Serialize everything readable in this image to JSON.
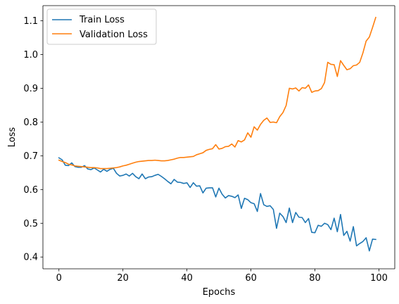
{
  "chart_data": {
    "type": "line",
    "title": "",
    "xlabel": "Epochs",
    "ylabel": "Loss",
    "xlim": [
      -5,
      104.95
    ],
    "ylim": [
      0.365,
      1.145
    ],
    "xticks": [
      0,
      20,
      40,
      60,
      80,
      100
    ],
    "yticks": [
      0.4,
      0.5,
      0.6,
      0.7,
      0.8,
      0.9,
      1.0,
      1.1
    ],
    "grid": false,
    "legend_position": "top-left",
    "x": [
      0,
      1,
      2,
      3,
      4,
      5,
      6,
      7,
      8,
      9,
      10,
      11,
      12,
      13,
      14,
      15,
      16,
      17,
      18,
      19,
      20,
      21,
      22,
      23,
      24,
      25,
      26,
      27,
      28,
      29,
      30,
      31,
      32,
      33,
      34,
      35,
      36,
      37,
      38,
      39,
      40,
      41,
      42,
      43,
      44,
      45,
      46,
      47,
      48,
      49,
      50,
      51,
      52,
      53,
      54,
      55,
      56,
      57,
      58,
      59,
      60,
      61,
      62,
      63,
      64,
      65,
      66,
      67,
      68,
      69,
      70,
      71,
      72,
      73,
      74,
      75,
      76,
      77,
      78,
      79,
      80,
      81,
      82,
      83,
      84,
      85,
      86,
      87,
      88,
      89,
      90,
      91,
      92,
      93,
      94,
      95,
      96,
      97,
      98,
      99
    ],
    "series": [
      {
        "name": "Train Loss",
        "color": "#1f77b4",
        "values": [
          0.694,
          0.688,
          0.672,
          0.671,
          0.679,
          0.668,
          0.666,
          0.666,
          0.671,
          0.661,
          0.659,
          0.664,
          0.658,
          0.652,
          0.66,
          0.654,
          0.66,
          0.663,
          0.648,
          0.64,
          0.642,
          0.646,
          0.64,
          0.648,
          0.638,
          0.632,
          0.646,
          0.632,
          0.637,
          0.638,
          0.642,
          0.645,
          0.639,
          0.632,
          0.624,
          0.617,
          0.63,
          0.622,
          0.621,
          0.618,
          0.62,
          0.606,
          0.62,
          0.61,
          0.611,
          0.59,
          0.604,
          0.605,
          0.605,
          0.578,
          0.604,
          0.586,
          0.575,
          0.582,
          0.58,
          0.576,
          0.584,
          0.544,
          0.574,
          0.57,
          0.561,
          0.558,
          0.535,
          0.588,
          0.555,
          0.55,
          0.552,
          0.541,
          0.485,
          0.53,
          0.52,
          0.502,
          0.545,
          0.502,
          0.532,
          0.518,
          0.517,
          0.502,
          0.514,
          0.473,
          0.472,
          0.494,
          0.491,
          0.5,
          0.496,
          0.481,
          0.515,
          0.475,
          0.526,
          0.464,
          0.476,
          0.447,
          0.49,
          0.433,
          0.44,
          0.446,
          0.457,
          0.418,
          0.453,
          0.452
        ]
      },
      {
        "name": "Validation Loss",
        "color": "#ff7f0e",
        "values": [
          0.687,
          0.683,
          0.68,
          0.675,
          0.673,
          0.67,
          0.669,
          0.668,
          0.667,
          0.666,
          0.665,
          0.665,
          0.664,
          0.662,
          0.662,
          0.662,
          0.663,
          0.664,
          0.665,
          0.667,
          0.67,
          0.672,
          0.675,
          0.678,
          0.681,
          0.683,
          0.684,
          0.685,
          0.686,
          0.686,
          0.687,
          0.686,
          0.685,
          0.685,
          0.686,
          0.688,
          0.69,
          0.693,
          0.695,
          0.695,
          0.696,
          0.697,
          0.698,
          0.703,
          0.706,
          0.709,
          0.716,
          0.719,
          0.721,
          0.733,
          0.72,
          0.722,
          0.727,
          0.728,
          0.735,
          0.726,
          0.745,
          0.741,
          0.747,
          0.768,
          0.755,
          0.786,
          0.776,
          0.793,
          0.805,
          0.812,
          0.799,
          0.8,
          0.798,
          0.816,
          0.828,
          0.849,
          0.9,
          0.898,
          0.901,
          0.892,
          0.902,
          0.9,
          0.91,
          0.888,
          0.892,
          0.893,
          0.899,
          0.917,
          0.977,
          0.971,
          0.97,
          0.935,
          0.982,
          0.968,
          0.955,
          0.958,
          0.967,
          0.969,
          0.977,
          1.005,
          1.04,
          1.052,
          1.08,
          1.11
        ]
      }
    ]
  }
}
